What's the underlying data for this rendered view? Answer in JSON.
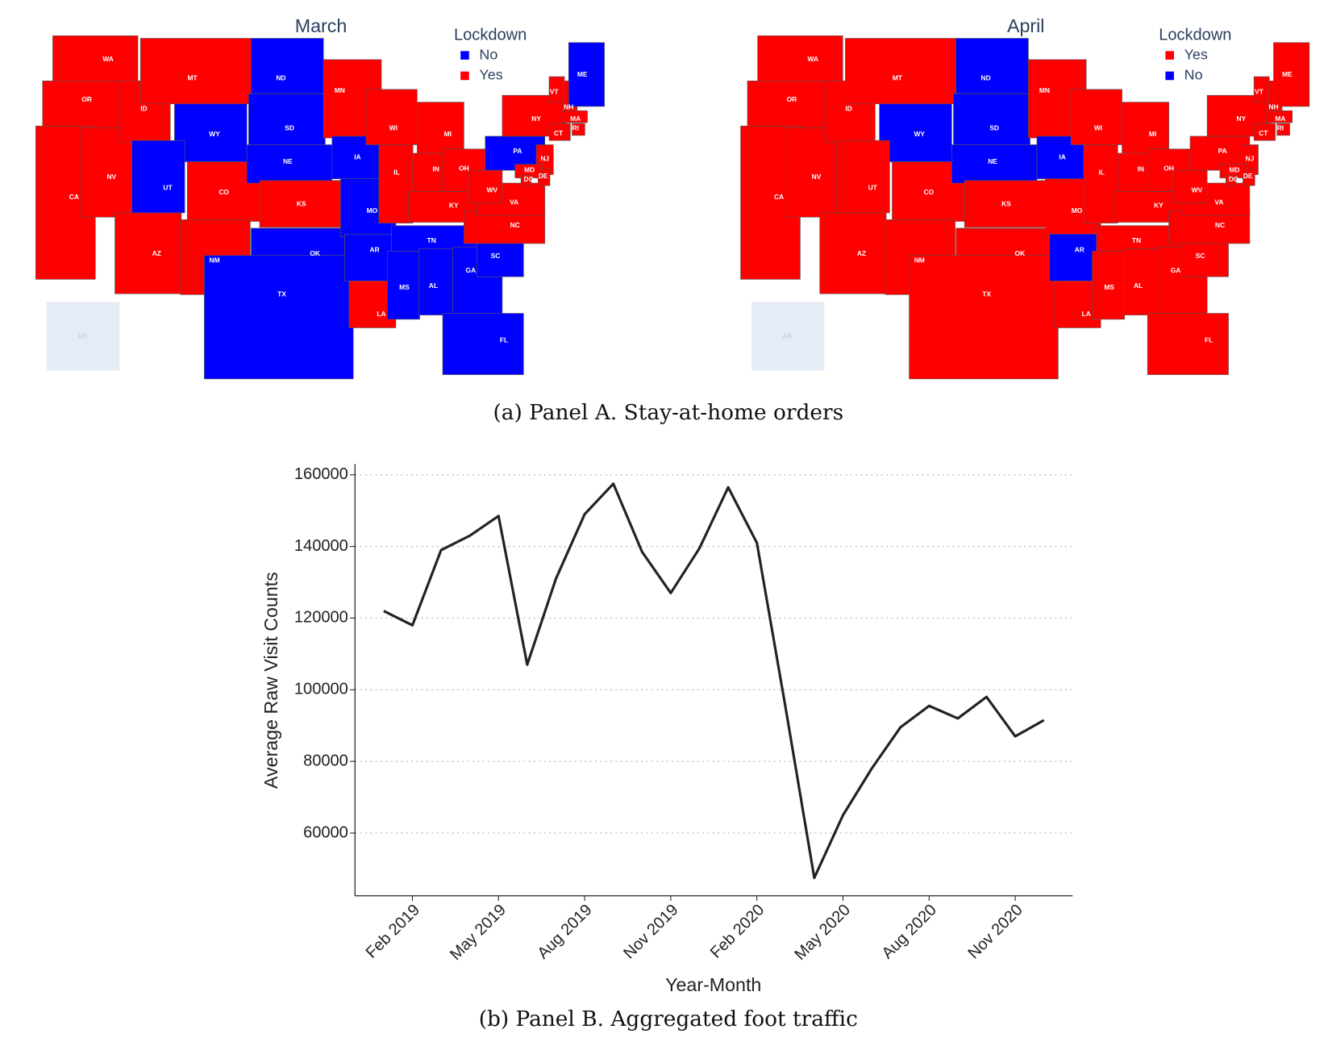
{
  "maps": [
    {
      "title": "March",
      "legend_title": "Lockdown",
      "legend": [
        {
          "label": "No",
          "color": "#0000ff"
        },
        {
          "label": "Yes",
          "color": "#ff0000"
        }
      ],
      "states": [
        {
          "label": "WA",
          "lockdown": "Yes"
        },
        {
          "label": "OR",
          "lockdown": "Yes"
        },
        {
          "label": "CA",
          "lockdown": "Yes"
        },
        {
          "label": "NV",
          "lockdown": "Yes"
        },
        {
          "label": "ID",
          "lockdown": "Yes"
        },
        {
          "label": "MT",
          "lockdown": "Yes"
        },
        {
          "label": "WY",
          "lockdown": "No"
        },
        {
          "label": "UT",
          "lockdown": "No"
        },
        {
          "label": "CO",
          "lockdown": "Yes"
        },
        {
          "label": "AZ",
          "lockdown": "Yes"
        },
        {
          "label": "NM",
          "lockdown": "Yes"
        },
        {
          "label": "ND",
          "lockdown": "No"
        },
        {
          "label": "SD",
          "lockdown": "No"
        },
        {
          "label": "NE",
          "lockdown": "No"
        },
        {
          "label": "KS",
          "lockdown": "Yes"
        },
        {
          "label": "OK",
          "lockdown": "No"
        },
        {
          "label": "TX",
          "lockdown": "No"
        },
        {
          "label": "MN",
          "lockdown": "Yes"
        },
        {
          "label": "IA",
          "lockdown": "No"
        },
        {
          "label": "MO",
          "lockdown": "No"
        },
        {
          "label": "AR",
          "lockdown": "No"
        },
        {
          "label": "LA",
          "lockdown": "Yes"
        },
        {
          "label": "WI",
          "lockdown": "Yes"
        },
        {
          "label": "IL",
          "lockdown": "Yes"
        },
        {
          "label": "MI",
          "lockdown": "Yes"
        },
        {
          "label": "IN",
          "lockdown": "Yes"
        },
        {
          "label": "OH",
          "lockdown": "Yes"
        },
        {
          "label": "KY",
          "lockdown": "Yes"
        },
        {
          "label": "TN",
          "lockdown": "No"
        },
        {
          "label": "MS",
          "lockdown": "No"
        },
        {
          "label": "AL",
          "lockdown": "No"
        },
        {
          "label": "GA",
          "lockdown": "No"
        },
        {
          "label": "FL",
          "lockdown": "No"
        },
        {
          "label": "SC",
          "lockdown": "No"
        },
        {
          "label": "NC",
          "lockdown": "Yes"
        },
        {
          "label": "VA",
          "lockdown": "Yes"
        },
        {
          "label": "WV",
          "lockdown": "Yes"
        },
        {
          "label": "PA",
          "lockdown": "No"
        },
        {
          "label": "NY",
          "lockdown": "Yes"
        },
        {
          "label": "VT",
          "lockdown": "Yes"
        },
        {
          "label": "NH",
          "lockdown": "Yes"
        },
        {
          "label": "ME",
          "lockdown": "No"
        },
        {
          "label": "MA",
          "lockdown": "Yes"
        },
        {
          "label": "CT",
          "lockdown": "Yes"
        },
        {
          "label": "RI",
          "lockdown": "Yes"
        },
        {
          "label": "NJ",
          "lockdown": "Yes"
        },
        {
          "label": "DE",
          "lockdown": "Yes"
        },
        {
          "label": "MD",
          "lockdown": "Yes"
        },
        {
          "label": "DC",
          "lockdown": "Yes"
        },
        {
          "label": "AK",
          "lockdown": null
        }
      ]
    },
    {
      "title": "April",
      "legend_title": "Lockdown",
      "legend": [
        {
          "label": "Yes",
          "color": "#ff0000"
        },
        {
          "label": "No",
          "color": "#0000ff"
        }
      ],
      "states": [
        {
          "label": "WA",
          "lockdown": "Yes"
        },
        {
          "label": "OR",
          "lockdown": "Yes"
        },
        {
          "label": "CA",
          "lockdown": "Yes"
        },
        {
          "label": "NV",
          "lockdown": "Yes"
        },
        {
          "label": "ID",
          "lockdown": "Yes"
        },
        {
          "label": "MT",
          "lockdown": "Yes"
        },
        {
          "label": "WY",
          "lockdown": "No"
        },
        {
          "label": "UT",
          "lockdown": "Yes"
        },
        {
          "label": "CO",
          "lockdown": "Yes"
        },
        {
          "label": "AZ",
          "lockdown": "Yes"
        },
        {
          "label": "NM",
          "lockdown": "Yes"
        },
        {
          "label": "ND",
          "lockdown": "No"
        },
        {
          "label": "SD",
          "lockdown": "No"
        },
        {
          "label": "NE",
          "lockdown": "No"
        },
        {
          "label": "KS",
          "lockdown": "Yes"
        },
        {
          "label": "OK",
          "lockdown": "Yes"
        },
        {
          "label": "TX",
          "lockdown": "Yes"
        },
        {
          "label": "MN",
          "lockdown": "Yes"
        },
        {
          "label": "IA",
          "lockdown": "No"
        },
        {
          "label": "MO",
          "lockdown": "Yes"
        },
        {
          "label": "AR",
          "lockdown": "No"
        },
        {
          "label": "LA",
          "lockdown": "Yes"
        },
        {
          "label": "WI",
          "lockdown": "Yes"
        },
        {
          "label": "IL",
          "lockdown": "Yes"
        },
        {
          "label": "MI",
          "lockdown": "Yes"
        },
        {
          "label": "IN",
          "lockdown": "Yes"
        },
        {
          "label": "OH",
          "lockdown": "Yes"
        },
        {
          "label": "KY",
          "lockdown": "Yes"
        },
        {
          "label": "TN",
          "lockdown": "Yes"
        },
        {
          "label": "MS",
          "lockdown": "Yes"
        },
        {
          "label": "AL",
          "lockdown": "Yes"
        },
        {
          "label": "GA",
          "lockdown": "Yes"
        },
        {
          "label": "FL",
          "lockdown": "Yes"
        },
        {
          "label": "SC",
          "lockdown": "Yes"
        },
        {
          "label": "NC",
          "lockdown": "Yes"
        },
        {
          "label": "VA",
          "lockdown": "Yes"
        },
        {
          "label": "WV",
          "lockdown": "Yes"
        },
        {
          "label": "PA",
          "lockdown": "Yes"
        },
        {
          "label": "NY",
          "lockdown": "Yes"
        },
        {
          "label": "VT",
          "lockdown": "Yes"
        },
        {
          "label": "NH",
          "lockdown": "Yes"
        },
        {
          "label": "ME",
          "lockdown": "Yes"
        },
        {
          "label": "MA",
          "lockdown": "Yes"
        },
        {
          "label": "CT",
          "lockdown": "Yes"
        },
        {
          "label": "RI",
          "lockdown": "Yes"
        },
        {
          "label": "NJ",
          "lockdown": "Yes"
        },
        {
          "label": "DE",
          "lockdown": "Yes"
        },
        {
          "label": "MD",
          "lockdown": "Yes"
        },
        {
          "label": "DC",
          "lockdown": "Yes"
        },
        {
          "label": "AK",
          "lockdown": null
        }
      ]
    }
  ],
  "panel_a_caption": "(a) Panel A. Stay-at-home orders",
  "chart_data": {
    "type": "line",
    "caption": "(b) Panel B. Aggregated foot traffic",
    "x_label": "Year-Month",
    "y_label": "Average Raw Visit Counts",
    "x": [
      "2019-01",
      "2019-02",
      "2019-03",
      "2019-04",
      "2019-05",
      "2019-06",
      "2019-07",
      "2019-08",
      "2019-09",
      "2019-10",
      "2019-11",
      "2019-12",
      "2020-01",
      "2020-02",
      "2020-03",
      "2020-04",
      "2020-05",
      "2020-06",
      "2020-07",
      "2020-08",
      "2020-09",
      "2020-10",
      "2020-11",
      "2020-12"
    ],
    "values": [
      122000,
      118000,
      139000,
      143000,
      148500,
      107000,
      131000,
      149000,
      157500,
      138500,
      127000,
      139500,
      156500,
      141000,
      95000,
      47500,
      65000,
      78000,
      89500,
      95500,
      92000,
      98000,
      87000,
      91500
    ],
    "color": "#222222",
    "xlim": [
      "2018-12",
      "2021-01"
    ],
    "xticks": [
      {
        "value": "2019-02",
        "label": "Feb 2019"
      },
      {
        "value": "2019-05",
        "label": "May 2019"
      },
      {
        "value": "2019-08",
        "label": "Aug 2019"
      },
      {
        "value": "2019-11",
        "label": "Nov 2019"
      },
      {
        "value": "2020-02",
        "label": "Feb 2020"
      },
      {
        "value": "2020-05",
        "label": "May 2020"
      },
      {
        "value": "2020-08",
        "label": "Aug 2020"
      },
      {
        "value": "2020-11",
        "label": "Nov 2020"
      }
    ],
    "ylim": [
      42500,
      163000
    ],
    "yticks": [
      60000,
      80000,
      100000,
      120000,
      140000,
      160000
    ],
    "grid": true
  }
}
